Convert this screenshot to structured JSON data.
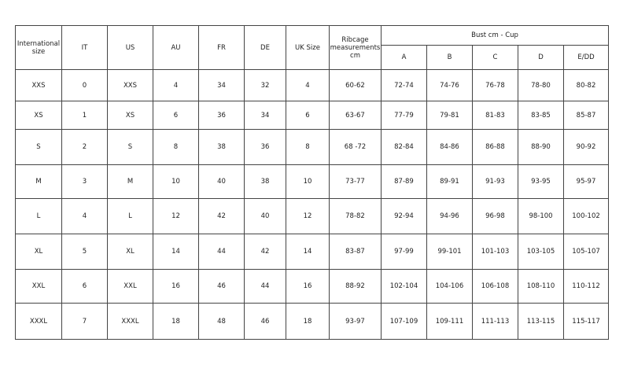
{
  "headers": {
    "international": "International size",
    "it": "IT",
    "us": "US",
    "au": "AU",
    "fr": "FR",
    "de": "DE",
    "uk": "UK Size",
    "ribcage": "Ribcage measurements cm",
    "bust_group": "Bust cm - Cup",
    "cups": [
      "A",
      "B",
      "C",
      "D",
      "E/DD"
    ]
  },
  "rows": [
    [
      "XXS",
      "0",
      "XXS",
      "4",
      "34",
      "32",
      "4",
      "60-62",
      "72-74",
      "74-76",
      "76-78",
      "78-80",
      "80-82"
    ],
    [
      "XS",
      "1",
      "XS",
      "6",
      "36",
      "34",
      "6",
      "63-67",
      "77-79",
      "79-81",
      "81-83",
      "83-85",
      "85-87"
    ],
    [
      "S",
      "2",
      "S",
      "8",
      "38",
      "36",
      "8",
      "68 -72",
      "82-84",
      "84-86",
      "86-88",
      "88-90",
      "90-92"
    ],
    [
      "M",
      "3",
      "M",
      "10",
      "40",
      "38",
      "10",
      "73-77",
      "87-89",
      "89-91",
      "91-93",
      "93-95",
      "95-97"
    ],
    [
      "L",
      "4",
      "L",
      "12",
      "42",
      "40",
      "12",
      "78-82",
      "92-94",
      "94-96",
      "96-98",
      "98-100",
      "100-102"
    ],
    [
      "XL",
      "5",
      "XL",
      "14",
      "44",
      "42",
      "14",
      "83-87",
      "97-99",
      "99-101",
      "101-103",
      "103-105",
      "105-107"
    ],
    [
      "XXL",
      "6",
      "XXL",
      "16",
      "46",
      "44",
      "16",
      "88-92",
      "102-104",
      "104-106",
      "106-108",
      "108-110",
      "110-112"
    ],
    [
      "XXXL",
      "7",
      "XXXL",
      "18",
      "48",
      "46",
      "18",
      "93-97",
      "107-109",
      "109-111",
      "111-113",
      "113-115",
      "115-117"
    ]
  ]
}
